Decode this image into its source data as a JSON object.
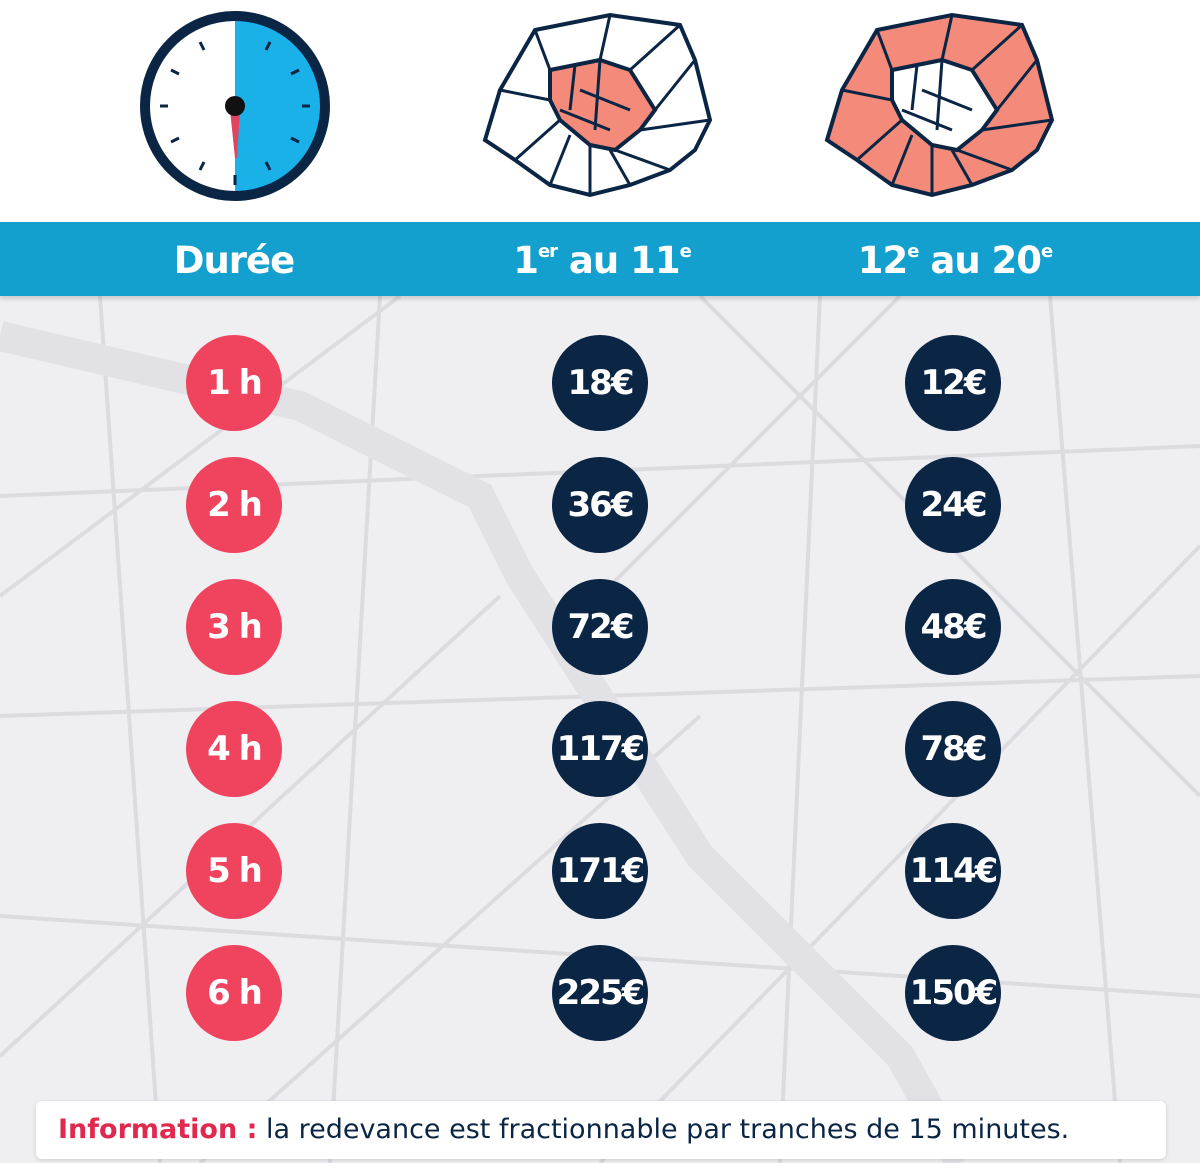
{
  "header": {
    "duration": {
      "text": "Durée"
    },
    "zone1": {
      "a": "1",
      "a_sup": "er",
      "b": " au 11",
      "b_sup": "e"
    },
    "zone2": {
      "a": "12",
      "a_sup": "e",
      "b": " au 20",
      "b_sup": "e"
    }
  },
  "rows": [
    {
      "duration": "1 h",
      "zone1": "18€",
      "zone2": "12€"
    },
    {
      "duration": "2 h",
      "zone1": "36€",
      "zone2": "24€"
    },
    {
      "duration": "3 h",
      "zone1": "72€",
      "zone2": "48€"
    },
    {
      "duration": "4 h",
      "zone1": "117€",
      "zone2": "78€"
    },
    {
      "duration": "5 h",
      "zone1": "171€",
      "zone2": "114€"
    },
    {
      "duration": "6 h",
      "zone1": "225€",
      "zone2": "150€"
    }
  ],
  "info": {
    "label": "Information :",
    "text": " la redevance est fractionnable par tranches de 15 minutes."
  },
  "colors": {
    "header": "#14a0cf",
    "duration": "#f0435e",
    "price": "#0b2545",
    "zone_fill": "#f38a7a",
    "info_label": "#e0294e"
  }
}
